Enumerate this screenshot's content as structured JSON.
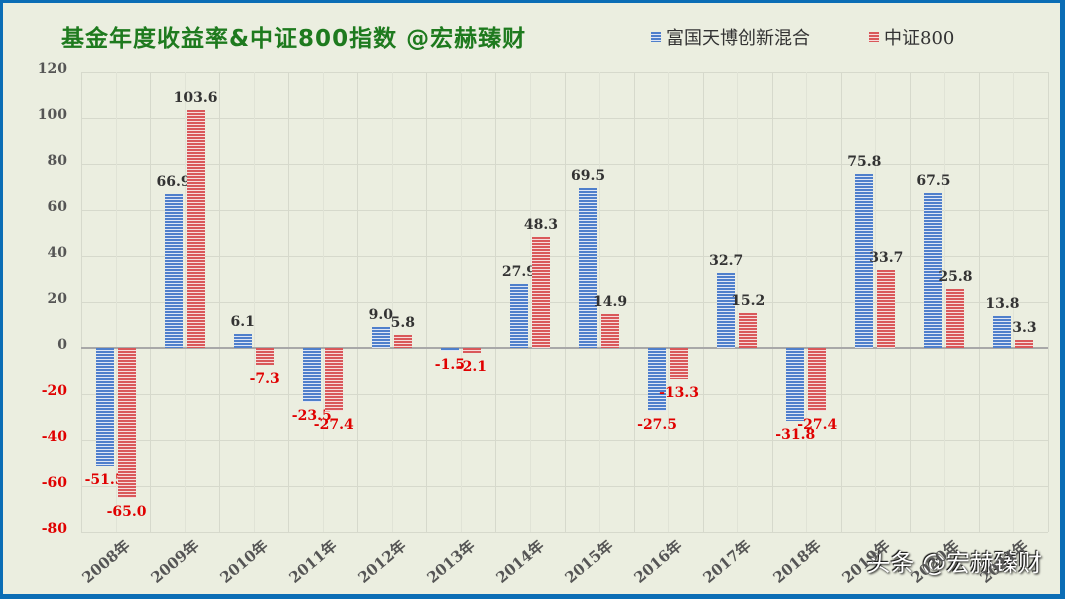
{
  "chart_data": {
    "type": "bar",
    "title": "基金年度收益率&中证800指数 @宏赫臻财",
    "xlabel": "",
    "ylabel": "",
    "ylim": [
      -80,
      120
    ],
    "yticks": [
      120,
      100,
      80,
      60,
      40,
      20,
      0,
      -20,
      -40,
      -60,
      -80
    ],
    "grid": true,
    "legend_position": "top-right",
    "categories": [
      "2008年",
      "2009年",
      "2010年",
      "2011年",
      "2012年",
      "2013年",
      "2014年",
      "2015年",
      "2016年",
      "2017年",
      "2018年",
      "2019年",
      "2020年",
      "2021年"
    ],
    "series": [
      {
        "name": "富国天博创新混合",
        "color": "#4f7fcb",
        "values": [
          -51.5,
          66.9,
          6.1,
          -23.5,
          9.0,
          -1.5,
          27.9,
          69.5,
          -27.5,
          32.7,
          -31.8,
          75.8,
          67.5,
          13.8
        ]
      },
      {
        "name": "中证800",
        "color": "#d9585a",
        "values": [
          -65.0,
          103.6,
          -7.3,
          -27.4,
          5.8,
          -2.1,
          48.3,
          14.9,
          -13.3,
          15.2,
          -27.4,
          33.7,
          25.8,
          3.3
        ]
      }
    ],
    "data_labels": {
      "positive_color": "#333333",
      "negative_color": "#e00000"
    }
  },
  "watermark": "头条 @宏赫臻财",
  "colors": {
    "frame_border": "#0b6db5",
    "background": "#ebeee0",
    "title": "#1e7a1e",
    "axis_positive": "#555555",
    "axis_negative": "#e00000"
  }
}
